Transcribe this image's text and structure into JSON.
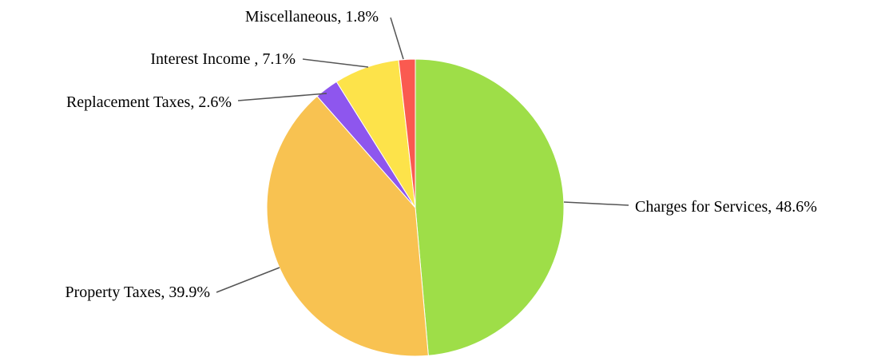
{
  "chart_data": {
    "type": "pie",
    "title": "",
    "start_angle_deg": 0,
    "direction": "clockwise",
    "legend": "none",
    "slices": [
      {
        "label": "Charges for Services",
        "value": 48.6,
        "display": "Charges for Services, 48.6%",
        "color": "#9ede48"
      },
      {
        "label": "Property Taxes",
        "value": 39.9,
        "display": "Property Taxes, 39.9%",
        "color": "#f8c251"
      },
      {
        "label": "Replacement Taxes",
        "value": 2.6,
        "display": "Replacement Taxes, 2.6%",
        "color": "#8e56ee"
      },
      {
        "label": "Interest Income ",
        "value": 7.1,
        "display": "Interest Income , 7.1%",
        "color": "#fde34a"
      },
      {
        "label": "Miscellaneous",
        "value": 1.8,
        "display": "Miscellaneous, 1.8%",
        "color": "#fa5a50"
      }
    ]
  }
}
